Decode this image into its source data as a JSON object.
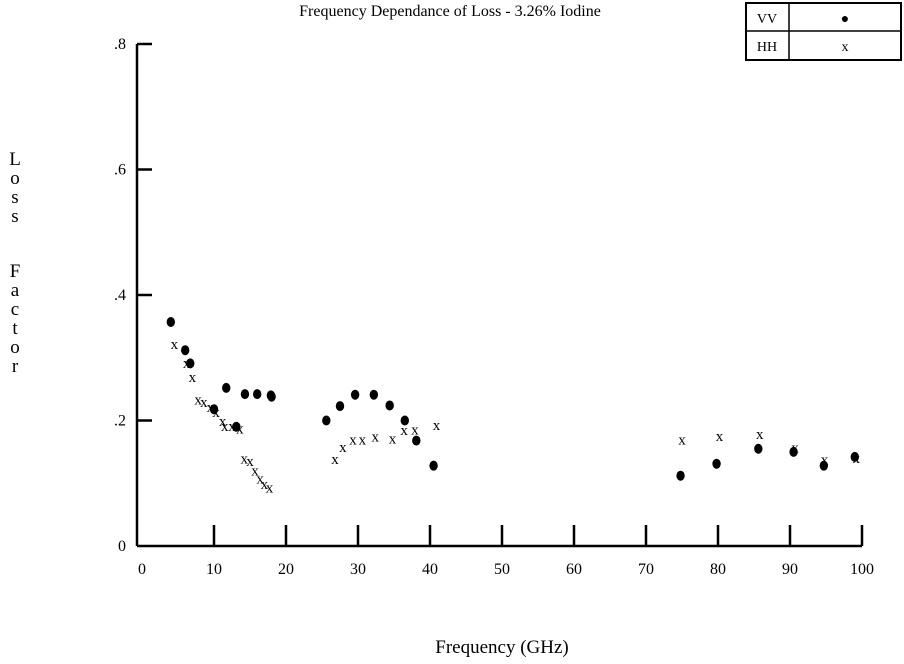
{
  "chart_data": {
    "type": "scatter",
    "title": "Frequency Dependance of Loss - 3.26% Iodine",
    "xlabel": "Frequency (GHz)",
    "ylabel": "Loss Factor",
    "xlim": [
      0,
      100
    ],
    "ylim": [
      0,
      0.8
    ],
    "x_ticks": [
      0,
      10,
      20,
      30,
      40,
      50,
      60,
      70,
      80,
      90,
      100
    ],
    "x_tick_labels": [
      "0",
      "10",
      "20",
      "30",
      "40",
      "50",
      "60",
      "70",
      "80",
      "90",
      "100"
    ],
    "y_ticks": [
      0,
      0.2,
      0.4,
      0.6,
      0.8
    ],
    "y_tick_labels": [
      "0",
      ".2",
      ".4",
      ".6",
      ".8"
    ],
    "grid": false,
    "legend_position": "top-right",
    "series": [
      {
        "name": "VV",
        "marker": "●",
        "color": "#000000",
        "points": [
          [
            4.0,
            0.357
          ],
          [
            6.0,
            0.312
          ],
          [
            6.7,
            0.291
          ],
          [
            10.0,
            0.218
          ],
          [
            11.7,
            0.252
          ],
          [
            13.1,
            0.19
          ],
          [
            14.3,
            0.242
          ],
          [
            16.0,
            0.242
          ],
          [
            17.9,
            0.24
          ],
          [
            18.0,
            0.238
          ],
          [
            25.6,
            0.2
          ],
          [
            27.5,
            0.223
          ],
          [
            29.6,
            0.241
          ],
          [
            32.2,
            0.241
          ],
          [
            34.4,
            0.224
          ],
          [
            36.5,
            0.2
          ],
          [
            38.1,
            0.168
          ],
          [
            40.5,
            0.128
          ],
          [
            74.8,
            0.112
          ],
          [
            79.8,
            0.131
          ],
          [
            85.6,
            0.155
          ],
          [
            90.5,
            0.15
          ],
          [
            94.7,
            0.128
          ],
          [
            99.0,
            0.142
          ]
        ]
      },
      {
        "name": "HH",
        "marker": "x",
        "color": "#000000",
        "points": [
          [
            4.5,
            0.32
          ],
          [
            6.2,
            0.29
          ],
          [
            7.0,
            0.268
          ],
          [
            7.8,
            0.232
          ],
          [
            8.6,
            0.228
          ],
          [
            9.5,
            0.22
          ],
          [
            10.3,
            0.212
          ],
          [
            11.2,
            0.198
          ],
          [
            11.5,
            0.19
          ],
          [
            12.5,
            0.19
          ],
          [
            13.6,
            0.186
          ],
          [
            14.2,
            0.138
          ],
          [
            15.0,
            0.134
          ],
          [
            15.7,
            0.119
          ],
          [
            16.4,
            0.106
          ],
          [
            17.0,
            0.097
          ],
          [
            17.7,
            0.092
          ],
          [
            26.8,
            0.137
          ],
          [
            27.9,
            0.156
          ],
          [
            29.3,
            0.168
          ],
          [
            30.6,
            0.168
          ],
          [
            32.4,
            0.173
          ],
          [
            34.8,
            0.17
          ],
          [
            36.4,
            0.183
          ],
          [
            37.9,
            0.184
          ],
          [
            40.9,
            0.191
          ],
          [
            75.0,
            0.168
          ],
          [
            80.2,
            0.174
          ],
          [
            85.8,
            0.177
          ],
          [
            90.7,
            0.155
          ],
          [
            94.8,
            0.136
          ],
          [
            99.2,
            0.139
          ]
        ]
      }
    ]
  }
}
